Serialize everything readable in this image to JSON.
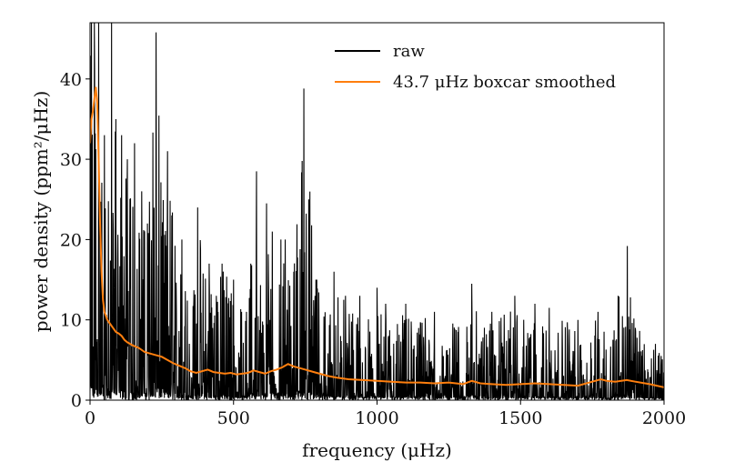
{
  "chart_data": {
    "type": "line",
    "xlabel": "frequency (μHz)",
    "ylabel": "power density (ppm²/μHz)",
    "xlim": [
      0,
      2000
    ],
    "ylim": [
      0,
      47
    ],
    "xticks": [
      0,
      500,
      1000,
      1500,
      2000
    ],
    "yticks": [
      0,
      10,
      20,
      30,
      40
    ],
    "grid": false,
    "legend_position": "top-right",
    "series": [
      {
        "name": "raw",
        "color": "#000000",
        "style": "noisy spectrum",
        "envelope": [
          [
            0,
            47
          ],
          [
            20,
            47
          ],
          [
            40,
            30
          ],
          [
            60,
            24
          ],
          [
            80,
            47
          ],
          [
            100,
            34
          ],
          [
            150,
            27
          ],
          [
            200,
            24
          ],
          [
            230,
            46
          ],
          [
            260,
            24
          ],
          [
            280,
            31
          ],
          [
            300,
            20
          ],
          [
            350,
            18
          ],
          [
            375,
            24
          ],
          [
            400,
            18
          ],
          [
            450,
            16
          ],
          [
            460,
            20
          ],
          [
            500,
            15
          ],
          [
            550,
            14
          ],
          [
            580,
            26
          ],
          [
            600,
            17
          ],
          [
            620,
            24
          ],
          [
            660,
            22
          ],
          [
            700,
            16
          ],
          [
            745,
            39
          ],
          [
            800,
            14
          ],
          [
            850,
            15
          ],
          [
            900,
            13
          ],
          [
            950,
            12
          ],
          [
            1000,
            12
          ],
          [
            1100,
            12
          ],
          [
            1200,
            11
          ],
          [
            1300,
            11
          ],
          [
            1330,
            14
          ],
          [
            1400,
            11
          ],
          [
            1480,
            13
          ],
          [
            1500,
            11
          ],
          [
            1600,
            11
          ],
          [
            1650,
            11
          ],
          [
            1700,
            10
          ],
          [
            1750,
            11
          ],
          [
            1800,
            10
          ],
          [
            1830,
            13
          ],
          [
            1870,
            19
          ],
          [
            1900,
            10
          ],
          [
            1950,
            8
          ],
          [
            2000,
            7
          ]
        ],
        "spikes": [
          [
            5,
            47
          ],
          [
            15,
            47
          ],
          [
            30,
            47
          ],
          [
            50,
            33
          ],
          [
            75,
            47
          ],
          [
            90,
            35
          ],
          [
            110,
            33
          ],
          [
            130,
            30
          ],
          [
            155,
            32
          ],
          [
            180,
            26
          ],
          [
            200,
            22
          ],
          [
            230,
            45.8
          ],
          [
            270,
            31
          ],
          [
            285,
            23
          ],
          [
            320,
            20
          ],
          [
            375,
            24
          ],
          [
            415,
            17
          ],
          [
            440,
            13
          ],
          [
            460,
            17
          ],
          [
            500,
            15
          ],
          [
            545,
            11
          ],
          [
            560,
            17
          ],
          [
            580,
            28.5
          ],
          [
            615,
            24.5
          ],
          [
            635,
            21
          ],
          [
            665,
            20
          ],
          [
            680,
            20
          ],
          [
            710,
            16
          ],
          [
            745,
            38.8
          ],
          [
            790,
            15
          ],
          [
            850,
            16
          ],
          [
            890,
            13
          ],
          [
            940,
            13
          ],
          [
            1000,
            14
          ],
          [
            1030,
            12
          ],
          [
            1100,
            12
          ],
          [
            1200,
            11
          ],
          [
            1330,
            14.5
          ],
          [
            1400,
            11
          ],
          [
            1480,
            13
          ],
          [
            1550,
            12
          ],
          [
            1600,
            11.5
          ],
          [
            1700,
            10
          ],
          [
            1770,
            11
          ],
          [
            1840,
            13
          ],
          [
            1872,
            19.2
          ],
          [
            1900,
            9
          ],
          [
            1970,
            7
          ],
          [
            1990,
            5.5
          ]
        ]
      },
      {
        "name": "43.7 μHz boxcar smoothed",
        "color": "#ff7f0e",
        "x": [
          0,
          5,
          10,
          15,
          20,
          25,
          30,
          35,
          40,
          45,
          50,
          60,
          70,
          80,
          90,
          100,
          110,
          120,
          130,
          150,
          170,
          190,
          210,
          230,
          250,
          270,
          290,
          310,
          330,
          350,
          370,
          390,
          410,
          430,
          450,
          470,
          490,
          510,
          530,
          550,
          570,
          590,
          610,
          630,
          650,
          670,
          690,
          710,
          730,
          750,
          780,
          800,
          830,
          860,
          900,
          950,
          1000,
          1050,
          1100,
          1150,
          1200,
          1250,
          1300,
          1330,
          1360,
          1400,
          1450,
          1500,
          1550,
          1600,
          1650,
          1700,
          1750,
          1780,
          1800,
          1830,
          1870,
          1900,
          1950,
          2000
        ],
        "y": [
          32,
          35,
          36,
          37.5,
          39,
          37,
          30,
          22,
          16,
          12.5,
          11,
          10,
          9.5,
          9,
          8.5,
          8.3,
          8,
          7.5,
          7.2,
          6.8,
          6.5,
          6,
          5.8,
          5.6,
          5.4,
          5,
          4.6,
          4.3,
          4,
          3.6,
          3.4,
          3.6,
          3.8,
          3.5,
          3.4,
          3.3,
          3.4,
          3.2,
          3.3,
          3.4,
          3.7,
          3.5,
          3.3,
          3.6,
          3.8,
          4.1,
          4.5,
          4.2,
          4,
          3.8,
          3.5,
          3.3,
          3,
          2.8,
          2.6,
          2.5,
          2.4,
          2.3,
          2.2,
          2.2,
          2.1,
          2.2,
          2.0,
          2.4,
          2.1,
          2.0,
          1.9,
          2.0,
          2.1,
          2.0,
          1.9,
          1.8,
          2.3,
          2.6,
          2.4,
          2.3,
          2.5,
          2.3,
          2.0,
          1.6
        ]
      }
    ]
  }
}
